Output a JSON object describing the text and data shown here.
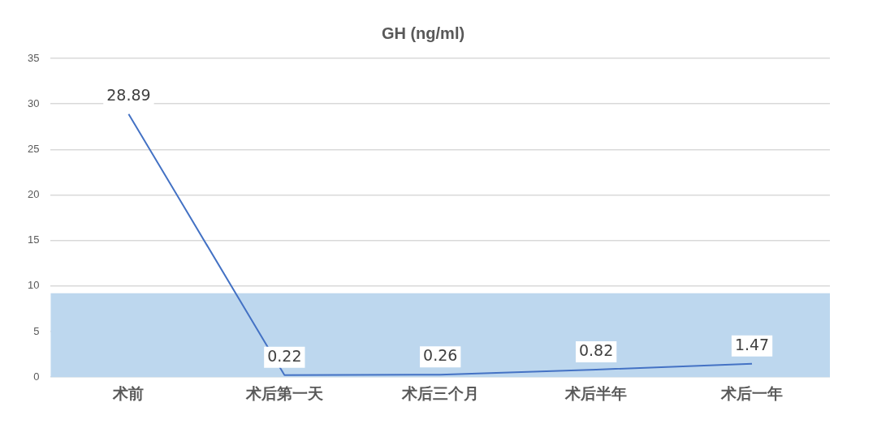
{
  "chart_data": {
    "type": "line",
    "title": "GH (ng/ml)",
    "categories": [
      "术前",
      "术后第一天",
      "术后三个月",
      "术后半年",
      "术后一年"
    ],
    "series": [
      {
        "color": "#4472c4",
        "values": [
          28.89,
          0.22,
          0.26,
          0.82,
          1.47
        ]
      }
    ],
    "ylim": [
      0,
      35
    ],
    "yticks": [
      0,
      5,
      10,
      15,
      20,
      25,
      30,
      35
    ],
    "grid": "y",
    "legend": false,
    "marker": "none",
    "line_style": "solid",
    "data_labels": true,
    "bands": [
      {
        "axis": "y",
        "from": 0,
        "to": 9.2,
        "color": "#bdd7ee"
      }
    ]
  }
}
